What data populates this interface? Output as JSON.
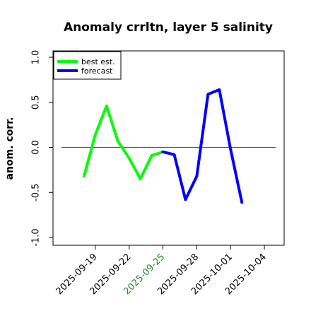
{
  "chart_data": {
    "type": "line",
    "title": "Anomaly crrltn, layer 5 salinity",
    "ylabel": "anom. corr.",
    "xlabel": "",
    "ylim": [
      -1.0,
      1.0
    ],
    "yticks": [
      "-1.0",
      "-0.5",
      "0.0",
      "0.5",
      "1.0"
    ],
    "xlim": [
      "2025-09-16",
      "2025-10-05"
    ],
    "xticks": [
      {
        "date": "2025-09-19",
        "label": "2025-09-19",
        "color": "#000000"
      },
      {
        "date": "2025-09-22",
        "label": "2025-09-22",
        "color": "#000000"
      },
      {
        "date": "2025-09-25",
        "label": "2025-09-25",
        "color": "#228B22"
      },
      {
        "date": "2025-09-28",
        "label": "2025-09-28",
        "color": "#000000"
      },
      {
        "date": "2025-10-01",
        "label": "2025-10-01",
        "color": "#000000"
      },
      {
        "date": "2025-10-04",
        "label": "2025-10-04",
        "color": "#000000"
      }
    ],
    "reference_line_y": 0.0,
    "grid": false,
    "legend_position": "top-left",
    "series": [
      {
        "name": "best est.",
        "color": "#00ff00",
        "x": [
          "2025-09-18",
          "2025-09-19",
          "2025-09-20",
          "2025-09-21",
          "2025-09-22",
          "2025-09-23",
          "2025-09-24",
          "2025-09-25"
        ],
        "y": [
          -0.32,
          0.14,
          0.46,
          0.07,
          -0.12,
          -0.35,
          -0.09,
          -0.05
        ]
      },
      {
        "name": "forecast",
        "color": "#0000ff",
        "x": [
          "2025-09-25",
          "2025-09-26",
          "2025-09-27",
          "2025-09-28",
          "2025-09-29",
          "2025-09-30",
          "2025-10-01",
          "2025-10-02"
        ],
        "y": [
          -0.05,
          -0.08,
          -0.58,
          -0.32,
          0.59,
          0.64,
          -0.02,
          -0.61
        ]
      }
    ]
  }
}
